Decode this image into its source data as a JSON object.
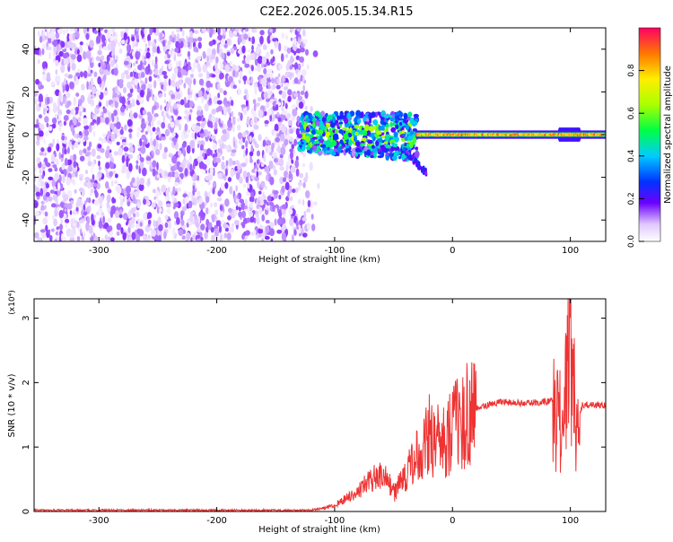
{
  "title": "C2E2.2026.005.15.34.R15",
  "chart_data": [
    {
      "type": "heatmap",
      "xlabel": "Height of straight line (km)",
      "ylabel": "Frequency (Hz)",
      "xlim": [
        -355,
        130
      ],
      "ylim": [
        -50,
        50
      ],
      "x_ticks": [
        -300,
        -200,
        -100,
        0,
        100
      ],
      "x_tick_labels": [
        "-300",
        "-200",
        "-100",
        "0",
        "100"
      ],
      "y_ticks": [
        -40,
        -20,
        0,
        20,
        40
      ],
      "y_tick_labels": [
        "-40",
        "-20",
        "0",
        "20",
        "40"
      ],
      "colorbar": {
        "label": "Normalized spectral amplitude",
        "range": [
          0,
          1
        ],
        "ticks": [
          0,
          0.2,
          0.4,
          0.6,
          0.8
        ],
        "tick_labels": [
          "0.0",
          "0.2",
          "0.4",
          "0.6",
          "0.8"
        ]
      },
      "features": [
        {
          "name": "noise",
          "x_range": [
            -355,
            -125
          ],
          "freq_range": [
            -50,
            50
          ],
          "amplitude": 0.15
        },
        {
          "name": "spread",
          "x_range": [
            -130,
            -30
          ],
          "freq_range": [
            -12,
            10
          ],
          "amplitude": 0.3
        },
        {
          "name": "tail",
          "x_range": [
            -40,
            -22
          ],
          "freq_center_start": -8,
          "freq_center_end": -18,
          "amplitude": 0.2
        },
        {
          "name": "carrier",
          "x_range": [
            -30,
            130
          ],
          "freq": 0,
          "amplitude": 0.9
        }
      ]
    },
    {
      "type": "line",
      "xlabel": "Height of straight line (km)",
      "ylabel": "SNR (10 * v/v)",
      "y_multiplier": "(x10⁴)",
      "xlim": [
        -355,
        130
      ],
      "ylim": [
        0,
        3.3
      ],
      "x_ticks": [
        -300,
        -200,
        -100,
        0,
        100
      ],
      "x_tick_labels": [
        "-300",
        "-200",
        "-100",
        "0",
        "100"
      ],
      "y_ticks": [
        0,
        1,
        2,
        3
      ],
      "y_tick_labels": [
        "0",
        "1",
        "2",
        "3"
      ],
      "series": [
        {
          "color": "#ee3333",
          "x": [
            -355,
            -120,
            -110,
            -100,
            -90,
            -80,
            -70,
            -60,
            -50,
            -40,
            -30,
            -20,
            -10,
            0,
            10,
            20,
            30,
            40,
            60,
            80,
            90,
            95,
            100,
            105,
            110,
            130
          ],
          "y": [
            0.02,
            0.02,
            0.05,
            0.1,
            0.2,
            0.3,
            0.5,
            0.6,
            0.3,
            0.5,
            0.9,
            1.2,
            1.05,
            1.25,
            1.45,
            1.6,
            1.65,
            1.7,
            1.68,
            1.7,
            1.8,
            2.2,
            3.3,
            1.2,
            1.65,
            1.65
          ]
        }
      ]
    }
  ]
}
